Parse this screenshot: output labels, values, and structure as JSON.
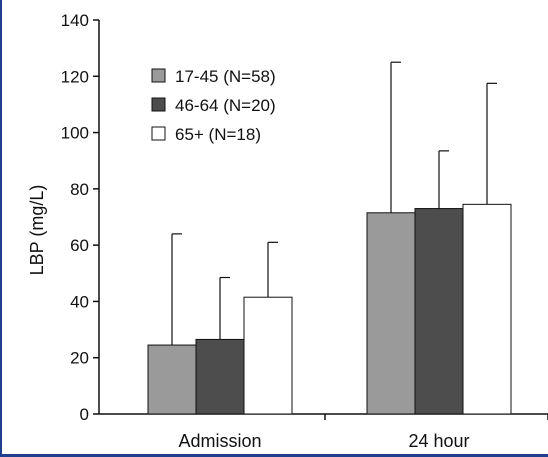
{
  "chart_data": {
    "type": "bar",
    "categories": [
      "Admission",
      "24 hour"
    ],
    "series": [
      {
        "name": "17-45 (N=58)",
        "values": [
          24.5,
          71.5
        ],
        "error": [
          39.5,
          53.5
        ],
        "color": "#9a9a9a"
      },
      {
        "name": "46-64 (N=20)",
        "values": [
          26.5,
          73
        ],
        "error": [
          22,
          20.5
        ],
        "color": "#4d4d4d"
      },
      {
        "name": "65+ (N=18)",
        "values": [
          41.5,
          74.5
        ],
        "error": [
          19.5,
          43
        ],
        "color": "#ffffff"
      }
    ],
    "title": "",
    "xlabel": "",
    "ylabel": "LBP (mg/L)",
    "ylim": [
      0,
      140
    ],
    "yticks": [
      0,
      20,
      40,
      60,
      80,
      100,
      120,
      140
    ],
    "grid": false,
    "legend_position": "top-left"
  }
}
